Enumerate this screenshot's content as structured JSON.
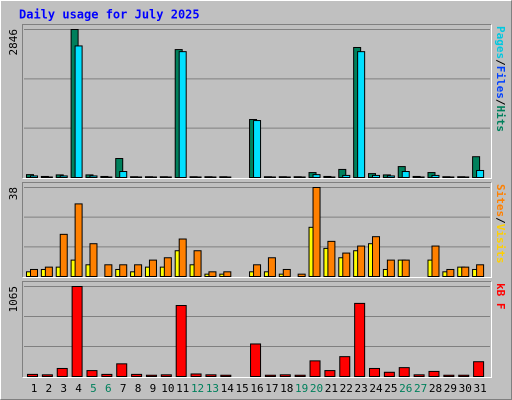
{
  "title": "Daily usage for July 2025",
  "legend_separator": "/",
  "chart_data": [
    {
      "type": "bar",
      "ylim": [
        0,
        2846
      ],
      "yticks": [
        2846
      ],
      "legend": [
        {
          "text": "Pages",
          "color": "#00c8e0"
        },
        {
          "text": "Files",
          "color": "#0040ff"
        },
        {
          "text": "Hits",
          "color": "#00805c"
        }
      ],
      "series": [
        {
          "name": "Hits",
          "color": "#00805c",
          "values": [
            55,
            20,
            50,
            2846,
            50,
            20,
            365,
            15,
            15,
            15,
            2460,
            15,
            15,
            15,
            0,
            1115,
            15,
            15,
            15,
            95,
            20,
            155,
            2500,
            75,
            50,
            210,
            20,
            95,
            15,
            15,
            400
          ]
        },
        {
          "name": "Pages",
          "color": "#00e0ff",
          "values": [
            30,
            10,
            30,
            2530,
            30,
            10,
            115,
            10,
            10,
            10,
            2420,
            10,
            10,
            10,
            0,
            1095,
            10,
            10,
            10,
            55,
            10,
            40,
            2420,
            40,
            30,
            115,
            10,
            40,
            10,
            10,
            135
          ]
        }
      ]
    },
    {
      "type": "bar",
      "ylim": [
        0,
        38
      ],
      "yticks": [
        38
      ],
      "legend": [
        {
          "text": "Sites",
          "color": "#ff8000"
        },
        {
          "text": "Visits",
          "color": "#ffd000"
        }
      ],
      "series": [
        {
          "name": "Visits",
          "color": "#ffff00",
          "values": [
            2,
            3,
            4,
            7,
            5,
            0,
            3,
            2,
            4,
            4,
            11,
            5,
            1,
            1,
            0,
            2,
            2,
            1,
            0,
            21,
            12,
            8,
            11,
            14,
            3,
            7,
            0,
            7,
            2,
            4,
            3
          ]
        },
        {
          "name": "Sites",
          "color": "#ff8000",
          "values": [
            3,
            4,
            18,
            31,
            14,
            5,
            5,
            5,
            7,
            8,
            16,
            11,
            2,
            2,
            0,
            5,
            8,
            3,
            1,
            38,
            15,
            10,
            13,
            17,
            7,
            7,
            0,
            13,
            3,
            4,
            5
          ]
        }
      ]
    },
    {
      "type": "bar",
      "ylim": [
        0,
        1065
      ],
      "yticks": [
        1065
      ],
      "legend": [
        {
          "text": "kB F",
          "color": "#ff0000"
        }
      ],
      "categories": [
        "1",
        "2",
        "3",
        "4",
        "5",
        "6",
        "7",
        "8",
        "9",
        "10",
        "11",
        "12",
        "13",
        "14",
        "15",
        "16",
        "17",
        "18",
        "19",
        "20",
        "21",
        "22",
        "23",
        "24",
        "25",
        "26",
        "27",
        "28",
        "29",
        "30",
        "31"
      ],
      "weekend": [
        false,
        false,
        false,
        false,
        true,
        true,
        false,
        false,
        false,
        false,
        false,
        true,
        true,
        false,
        false,
        false,
        false,
        false,
        true,
        true,
        false,
        false,
        false,
        false,
        false,
        true,
        true,
        false,
        false,
        false,
        false
      ],
      "weekend_color": "#00805c",
      "series": [
        {
          "name": "kB F",
          "color": "#ff0000",
          "values": [
            25,
            20,
            95,
            1065,
            70,
            25,
            150,
            25,
            15,
            20,
            840,
            30,
            20,
            15,
            0,
            385,
            15,
            20,
            15,
            185,
            70,
            235,
            865,
            95,
            50,
            105,
            20,
            60,
            15,
            15,
            175
          ]
        }
      ]
    }
  ]
}
